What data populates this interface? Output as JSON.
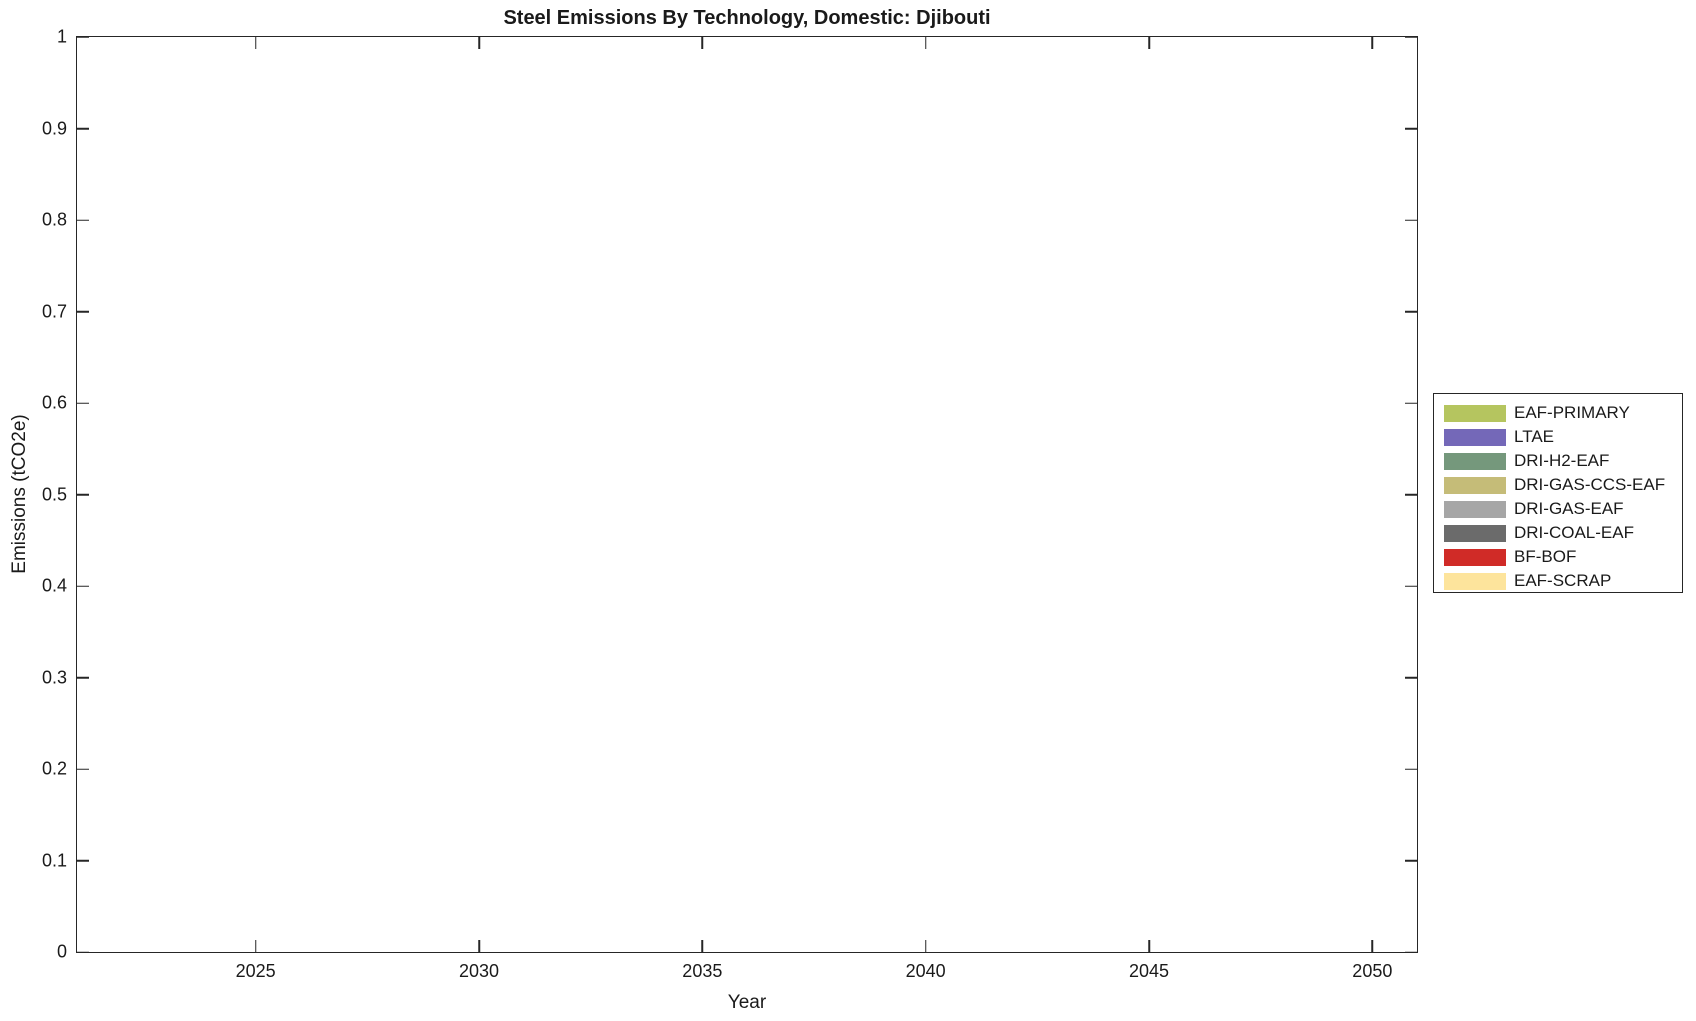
{
  "figure": {
    "background": "#ffffff",
    "axis_color": "#262626",
    "text_color": "#1a1a1a"
  },
  "chart_data": {
    "type": "bar",
    "title": "Steel Emissions By Technology, Domestic: Djibouti",
    "xlabel": "Year",
    "ylabel": "Emissions (tCO2e)",
    "xlim": [
      2021,
      2051
    ],
    "ylim": [
      0,
      1
    ],
    "xticks": [
      2025,
      2030,
      2035,
      2040,
      2045,
      2050
    ],
    "yticks": [
      0,
      0.1,
      0.2,
      0.3,
      0.4,
      0.5,
      0.6,
      0.7,
      0.8,
      0.9,
      1
    ],
    "ytick_labels": [
      "0",
      "0.1",
      "0.2",
      "0.3",
      "0.4",
      "0.5",
      "0.6",
      "0.7",
      "0.8",
      "0.9",
      "1"
    ],
    "grid": false,
    "legend_position": "right-outside",
    "series": [
      {
        "name": "EAF-PRIMARY",
        "color": "#b5c55f",
        "values": []
      },
      {
        "name": "LTAE",
        "color": "#7468b8",
        "values": []
      },
      {
        "name": "DRI-H2-EAF",
        "color": "#75987c",
        "values": []
      },
      {
        "name": "DRI-GAS-CCS-EAF",
        "color": "#c5bc78",
        "values": []
      },
      {
        "name": "DRI-GAS-EAF",
        "color": "#a6a6a6",
        "values": []
      },
      {
        "name": "DRI-COAL-EAF",
        "color": "#6b6b6b",
        "values": []
      },
      {
        "name": "BF-BOF",
        "color": "#d02b27",
        "values": []
      },
      {
        "name": "EAF-SCRAP",
        "color": "#fde49c",
        "values": []
      }
    ]
  }
}
